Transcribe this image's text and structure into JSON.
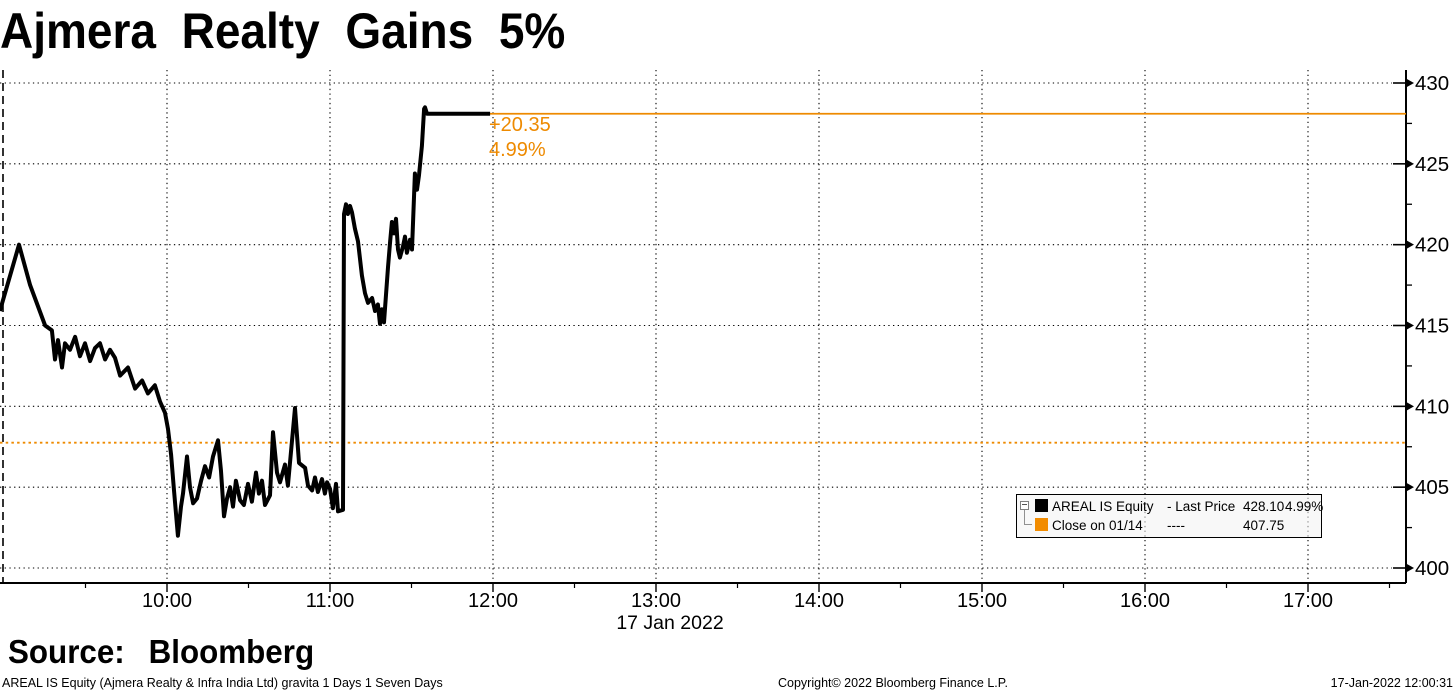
{
  "title": "Ajmera Realty Gains 5%",
  "annotation": {
    "change": "+20.35",
    "pct": "4.99%"
  },
  "legend": {
    "rows": [
      {
        "name": "AREAL IS Equity",
        "style_label": "- Last Price",
        "value": "428.10",
        "pct": "4.99%",
        "swatch_color": "#000000"
      },
      {
        "name": "Close on 01/14",
        "style_label": "----",
        "value": "407.75",
        "pct": "",
        "swatch_color": "#F28C00"
      }
    ]
  },
  "source_label": "Source: Bloomberg",
  "footer": {
    "left": "AREAL IS Equity (Ajmera Realty & Infra India Ltd) gravita 1 Days 1 Seven Days",
    "center": "Copyright© 2022 Bloomberg Finance L.P.",
    "right": "17-Jan-2022 12:00:31"
  },
  "colors": {
    "accent_orange": "#EE8A00",
    "line_black": "#000000"
  },
  "chart_data": {
    "type": "line",
    "title": "Ajmera Realty Gains 5%",
    "x_axis": {
      "date_label": "17 Jan 2022",
      "ticks": [
        {
          "hour": 10,
          "label": "10:00"
        },
        {
          "hour": 11,
          "label": "11:00"
        },
        {
          "hour": 12,
          "label": "12:00"
        },
        {
          "hour": 13,
          "label": "13:00"
        },
        {
          "hour": 14,
          "label": "14:00"
        },
        {
          "hour": 15,
          "label": "15:00"
        },
        {
          "hour": 16,
          "label": "16:00"
        },
        {
          "hour": 17,
          "label": "17:00"
        }
      ],
      "range_hours": [
        8.98,
        17.62
      ],
      "minor_tick_interval_hours": 0.5
    },
    "y_axis": {
      "side": "right",
      "ticks": [
        400,
        405,
        410,
        415,
        420,
        425,
        430
      ],
      "range": [
        399.1,
        430.8
      ],
      "minor_tick_interval": 2.5
    },
    "last_price": 428.1,
    "prev_close": 407.75,
    "net_change": "+20.35",
    "pct_change": "4.99%",
    "series": [
      {
        "name": "AREAL IS Equity - Last Price",
        "color": "#000000",
        "style": "solid",
        "points": [
          [
            8.975,
            415.9
          ],
          [
            9.092,
            420.0
          ],
          [
            9.16,
            417.5
          ],
          [
            9.252,
            415.0
          ],
          [
            9.294,
            414.7
          ],
          [
            9.313,
            412.9
          ],
          [
            9.331,
            414.1
          ],
          [
            9.356,
            412.4
          ],
          [
            9.374,
            413.9
          ],
          [
            9.405,
            413.5
          ],
          [
            9.436,
            414.3
          ],
          [
            9.466,
            413.1
          ],
          [
            9.497,
            413.9
          ],
          [
            9.528,
            412.8
          ],
          [
            9.558,
            413.6
          ],
          [
            9.589,
            413.9
          ],
          [
            9.62,
            412.9
          ],
          [
            9.65,
            413.5
          ],
          [
            9.681,
            413.0
          ],
          [
            9.712,
            411.9
          ],
          [
            9.761,
            412.4
          ],
          [
            9.804,
            411.1
          ],
          [
            9.847,
            411.6
          ],
          [
            9.883,
            410.8
          ],
          [
            9.926,
            411.3
          ],
          [
            9.957,
            410.3
          ],
          [
            9.988,
            409.6
          ],
          [
            10.006,
            408.6
          ],
          [
            10.025,
            407.0
          ],
          [
            10.043,
            404.8
          ],
          [
            10.067,
            402.0
          ],
          [
            10.086,
            403.8
          ],
          [
            10.098,
            404.6
          ],
          [
            10.123,
            406.9
          ],
          [
            10.141,
            405.0
          ],
          [
            10.16,
            404.0
          ],
          [
            10.184,
            404.3
          ],
          [
            10.209,
            405.4
          ],
          [
            10.233,
            406.3
          ],
          [
            10.258,
            405.6
          ],
          [
            10.282,
            406.9
          ],
          [
            10.313,
            407.9
          ],
          [
            10.331,
            406.0
          ],
          [
            10.35,
            403.2
          ],
          [
            10.368,
            404.3
          ],
          [
            10.387,
            405.0
          ],
          [
            10.405,
            403.8
          ],
          [
            10.423,
            405.4
          ],
          [
            10.448,
            404.2
          ],
          [
            10.472,
            403.9
          ],
          [
            10.497,
            405.2
          ],
          [
            10.521,
            404.1
          ],
          [
            10.546,
            405.9
          ],
          [
            10.564,
            404.6
          ],
          [
            10.583,
            405.4
          ],
          [
            10.601,
            403.9
          ],
          [
            10.632,
            404.5
          ],
          [
            10.65,
            408.4
          ],
          [
            10.675,
            405.9
          ],
          [
            10.693,
            405.3
          ],
          [
            10.724,
            406.4
          ],
          [
            10.742,
            405.1
          ],
          [
            10.785,
            409.9
          ],
          [
            10.81,
            406.5
          ],
          [
            10.847,
            406.2
          ],
          [
            10.865,
            405.1
          ],
          [
            10.89,
            404.8
          ],
          [
            10.908,
            405.6
          ],
          [
            10.926,
            404.7
          ],
          [
            10.951,
            405.5
          ],
          [
            10.969,
            404.6
          ],
          [
            10.982,
            405.3
          ],
          [
            11.0,
            404.9
          ],
          [
            11.018,
            403.7
          ],
          [
            11.037,
            405.2
          ],
          [
            11.049,
            403.5
          ],
          [
            11.08,
            403.6
          ],
          [
            11.086,
            421.9
          ],
          [
            11.098,
            422.5
          ],
          [
            11.11,
            421.9
          ],
          [
            11.123,
            422.4
          ],
          [
            11.135,
            422.0
          ],
          [
            11.153,
            421.0
          ],
          [
            11.172,
            420.2
          ],
          [
            11.196,
            418.1
          ],
          [
            11.215,
            417.0
          ],
          [
            11.233,
            416.4
          ],
          [
            11.258,
            416.7
          ],
          [
            11.276,
            415.9
          ],
          [
            11.294,
            416.3
          ],
          [
            11.307,
            415.1
          ],
          [
            11.319,
            416.0
          ],
          [
            11.331,
            415.2
          ],
          [
            11.356,
            418.6
          ],
          [
            11.368,
            420.1
          ],
          [
            11.38,
            421.4
          ],
          [
            11.393,
            420.7
          ],
          [
            11.405,
            421.6
          ],
          [
            11.417,
            419.7
          ],
          [
            11.429,
            419.2
          ],
          [
            11.448,
            419.9
          ],
          [
            11.46,
            420.5
          ],
          [
            11.472,
            419.5
          ],
          [
            11.491,
            420.3
          ],
          [
            11.503,
            419.7
          ],
          [
            11.521,
            424.4
          ],
          [
            11.534,
            423.4
          ],
          [
            11.546,
            424.3
          ],
          [
            11.564,
            426.1
          ],
          [
            11.577,
            428.4
          ],
          [
            11.583,
            428.5
          ],
          [
            11.595,
            428.1
          ],
          [
            11.736,
            428.1
          ],
          [
            11.982,
            428.1
          ]
        ]
      },
      {
        "name": "Last Price level",
        "color": "#EE8A00",
        "style": "solid",
        "value": 428.1,
        "from_hour": 11.97
      },
      {
        "name": "Close on 01/14",
        "color": "#EE8A00",
        "style": "dashed",
        "value": 407.75
      }
    ]
  }
}
